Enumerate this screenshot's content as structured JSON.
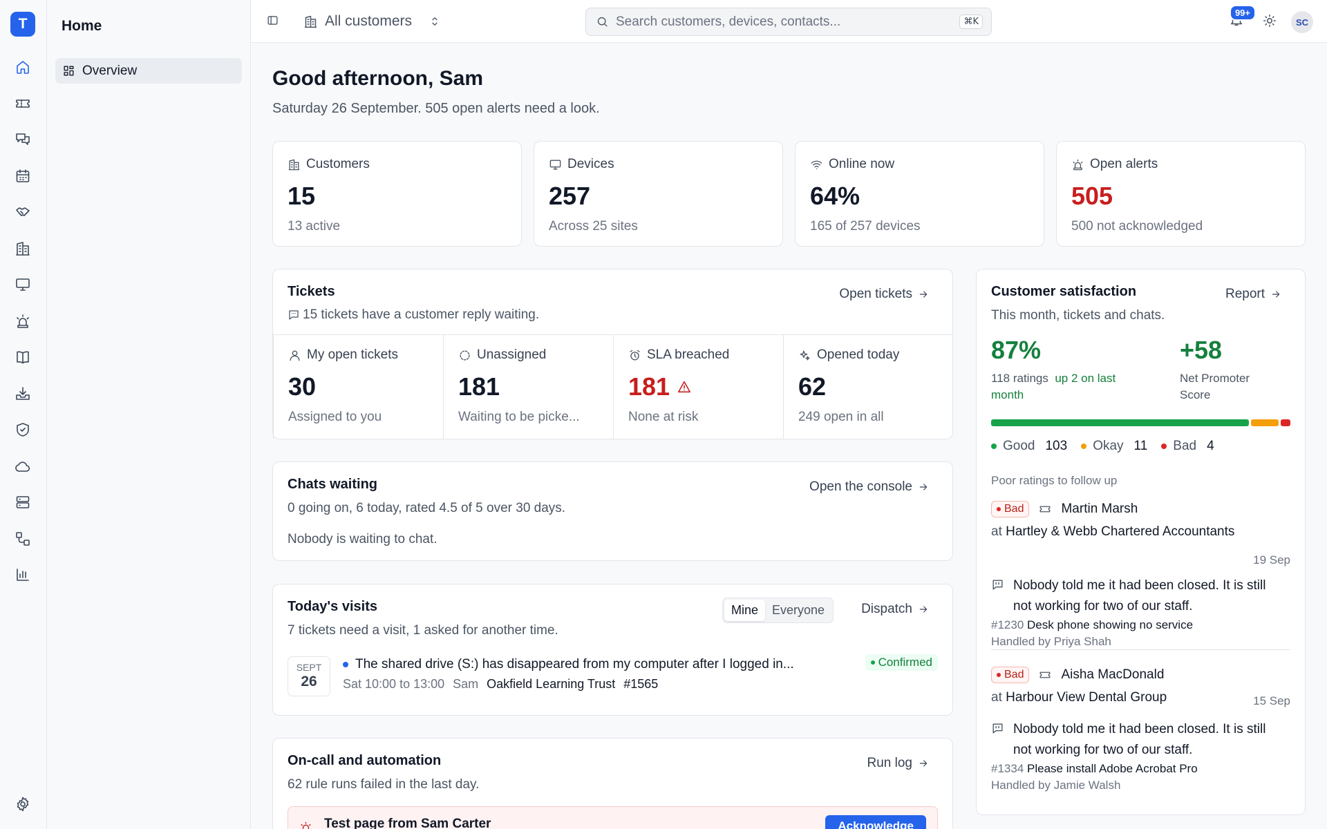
{
  "app": {
    "logo_letter": "T"
  },
  "rail": {
    "items": [
      "home-icon",
      "ticket-icon",
      "chat-icon",
      "calendar-icon",
      "handshake-icon",
      "building-icon",
      "monitor-icon",
      "siren-icon",
      "book-icon",
      "inbox-download-icon",
      "shield-icon",
      "cloud-icon",
      "server-icon",
      "workflow-icon",
      "chart-icon"
    ],
    "active": "home-icon"
  },
  "sidebar": {
    "title": "Home",
    "items": [
      {
        "label": "Overview",
        "icon": "dashboard-icon"
      }
    ]
  },
  "topbar": {
    "scope_label": "All customers",
    "search_placeholder": "Search customers, devices, contacts...",
    "search_shortcut": "⌘K",
    "notifications_badge": "99+",
    "avatar_initials": "SC"
  },
  "greeting": {
    "title": "Good afternoon, Sam",
    "subtitle": "Saturday 26 September. 505 open alerts need a look."
  },
  "stats": [
    {
      "label": "Customers",
      "value": "15",
      "sub": "13 active",
      "icon": "building-icon"
    },
    {
      "label": "Devices",
      "value": "257",
      "sub": "Across 25 sites",
      "icon": "monitor-icon"
    },
    {
      "label": "Online now",
      "value": "64%",
      "sub": "165 of 257 devices",
      "icon": "wifi-icon"
    },
    {
      "label": "Open alerts",
      "value": "505",
      "sub": "500 not acknowledged",
      "icon": "siren-icon",
      "alert": true
    }
  ],
  "tickets": {
    "title": "Tickets",
    "desc": "15 tickets have a customer reply waiting.",
    "link": "Open tickets",
    "cells": [
      {
        "label": "My open tickets",
        "value": "30",
        "sub": "Assigned to you",
        "icon": "user-icon"
      },
      {
        "label": "Unassigned",
        "value": "181",
        "sub": "Waiting to be picke...",
        "icon": "dashed-circle-icon"
      },
      {
        "label": "SLA breached",
        "value": "181",
        "sub": "None at risk",
        "icon": "alarm-clock-icon",
        "alert": true
      },
      {
        "label": "Opened today",
        "value": "62",
        "sub": "249 open in all",
        "icon": "sparkles-icon"
      }
    ]
  },
  "chats": {
    "title": "Chats waiting",
    "desc": "0 going on, 6 today, rated 4.5 of 5 over 30 days.",
    "empty": "Nobody is waiting to chat.",
    "link": "Open the console"
  },
  "visits": {
    "title": "Today's visits",
    "desc": "7 tickets need a visit, 1 asked for another time.",
    "toggle": [
      "Mine",
      "Everyone"
    ],
    "toggle_selected": "Mine",
    "link": "Dispatch",
    "items": [
      {
        "month": "SEPT",
        "day": "26",
        "title": "The shared drive (S:) has disappeared from my computer after I logged in...",
        "time": "Sat 10:00 to 13:00",
        "tech": "Sam",
        "customer": "Oakfield Learning Trust",
        "ticket": "#1565",
        "status": "Confirmed",
        "dot_color": "#2563eb"
      }
    ]
  },
  "oncall": {
    "title": "On-call and automation",
    "desc": "62 rule runs failed in the last day.",
    "link": "Run log",
    "alert_title": "Test page from Sam Carter",
    "alert_button": "Acknowledge"
  },
  "csat": {
    "title": "Customer satisfaction",
    "desc": "This month, tickets and chats.",
    "link": "Report",
    "percent": "87%",
    "ratings": "118 ratings",
    "trend": "up 2 on last month",
    "nps": "+58",
    "nps_label": "Net Promoter Score",
    "breakdown": [
      {
        "label": "Good",
        "count": "103",
        "value": 103,
        "color": "#16a34a"
      },
      {
        "label": "Okay",
        "count": "11",
        "value": 11,
        "color": "#f59e0b"
      },
      {
        "label": "Bad",
        "count": "4",
        "value": 4,
        "color": "#dc2626"
      }
    ],
    "follow_label": "Poor ratings to follow up",
    "poor": [
      {
        "badge": "Bad",
        "name": "Martin Marsh",
        "at": "at",
        "company": "Hartley & Webb Chartered Accountants",
        "date": "19 Sep",
        "comment": "Nobody told me it had been closed. It is still not working for two of our staff.",
        "ticket": "#1230",
        "ticket_title": "Desk phone showing no service",
        "handled": "Handled by Priya Shah"
      },
      {
        "badge": "Bad",
        "name": "Aisha MacDonald",
        "at": "at",
        "company": "Harbour View Dental Group",
        "date": "15 Sep",
        "comment": "Nobody told me it had been closed. It is still not working for two of our staff.",
        "ticket": "#1334",
        "ticket_title": "Please install Adobe Acrobat Pro",
        "handled": "Handled by Jamie Walsh"
      }
    ]
  },
  "colors": {
    "accent": "#2563eb",
    "danger": "#c81e1e",
    "success": "#16a34a",
    "warning": "#f59e0b"
  }
}
